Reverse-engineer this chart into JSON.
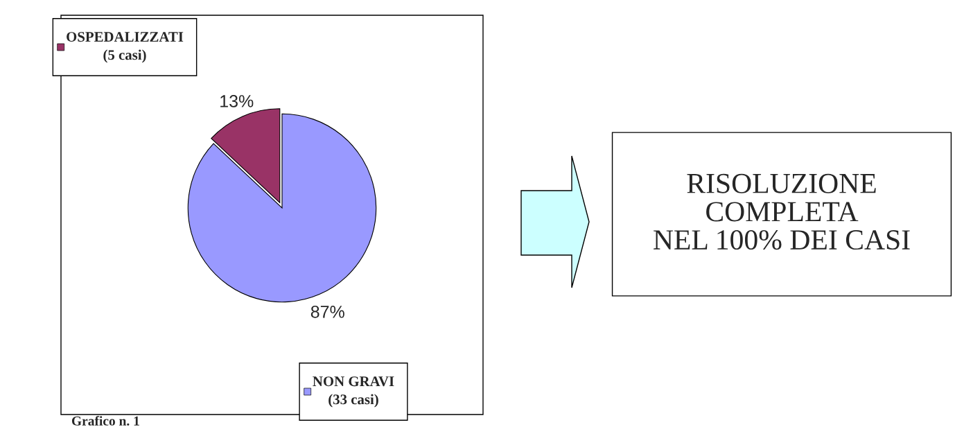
{
  "chart_data": {
    "type": "pie",
    "categories": [
      "OSPEDALIZZATI\n(5 casi)",
      "NON GRAVI\n(33 casi)"
    ],
    "values": [
      13,
      87
    ],
    "colors": [
      "#993366",
      "#9999ff"
    ],
    "value_labels": [
      "13%",
      "87%"
    ],
    "legend": "left",
    "annotations": [
      "RISOLUZIONE\nCOMPLETA\nNEL 100% DEI CASI",
      "Grafico n. 1"
    ]
  }
}
